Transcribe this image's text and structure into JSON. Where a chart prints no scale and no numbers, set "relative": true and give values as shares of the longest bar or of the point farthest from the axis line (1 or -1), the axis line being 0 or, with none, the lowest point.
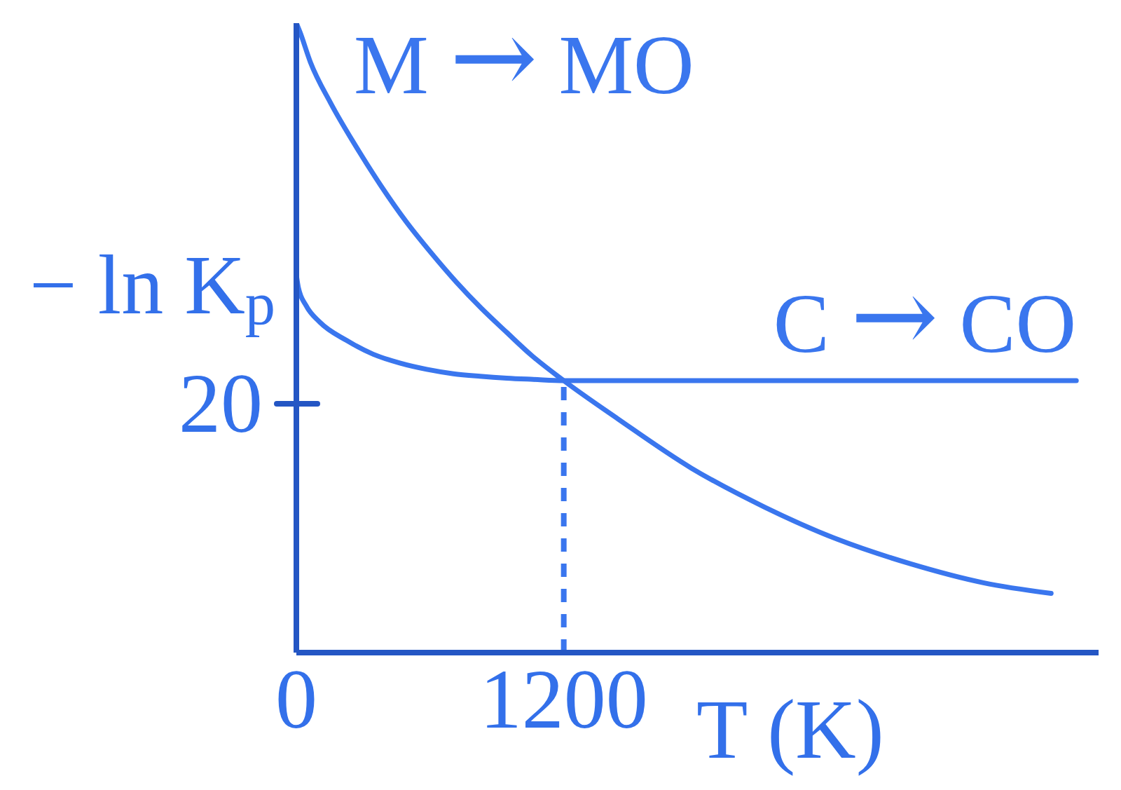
{
  "chart_data": {
    "type": "line",
    "relative": true,
    "xlabel": "T (K)",
    "ylabel": "− ln K$_{p}$",
    "annotations": [
      "20"
    ],
    "series": [
      {
        "name": "M → MO",
        "color": "#3a76ee",
        "x": [
          0,
          16,
          63,
          154,
          266,
          379,
          492,
          605,
          717,
          830,
          943,
          1056,
          1200,
          1444,
          1773,
          2102,
          2428,
          2757,
          3083,
          3387
        ],
        "values": [
          1,
          0.986,
          0.938,
          0.873,
          0.805,
          0.742,
          0.685,
          0.635,
          0.589,
          0.547,
          0.509,
          0.472,
          0.432,
          0.371,
          0.293,
          0.231,
          0.18,
          0.141,
          0.111,
          0.094
        ]
      },
      {
        "name": "C → CO",
        "color": "#3a76ee",
        "x": [
          0,
          9,
          44,
          105,
          225,
          345,
          464,
          585,
          705,
          824,
          944,
          1064,
          1200,
          3500
        ],
        "values": [
          0.6,
          0.58,
          0.551,
          0.525,
          0.496,
          0.474,
          0.46,
          0.45,
          0.443,
          0.439,
          0.436,
          0.434,
          0.432,
          0.432
        ]
      },
      {
        "color": "#3a76ee",
        "line_style": "dashed",
        "x": [
          1200,
          1200
        ],
        "values": [
          0,
          0.432
        ]
      }
    ],
    "xlim": [
      0,
      3600
    ],
    "xticks": [
      0,
      1200
    ],
    "marker": "none",
    "line_style": "solid"
  }
}
